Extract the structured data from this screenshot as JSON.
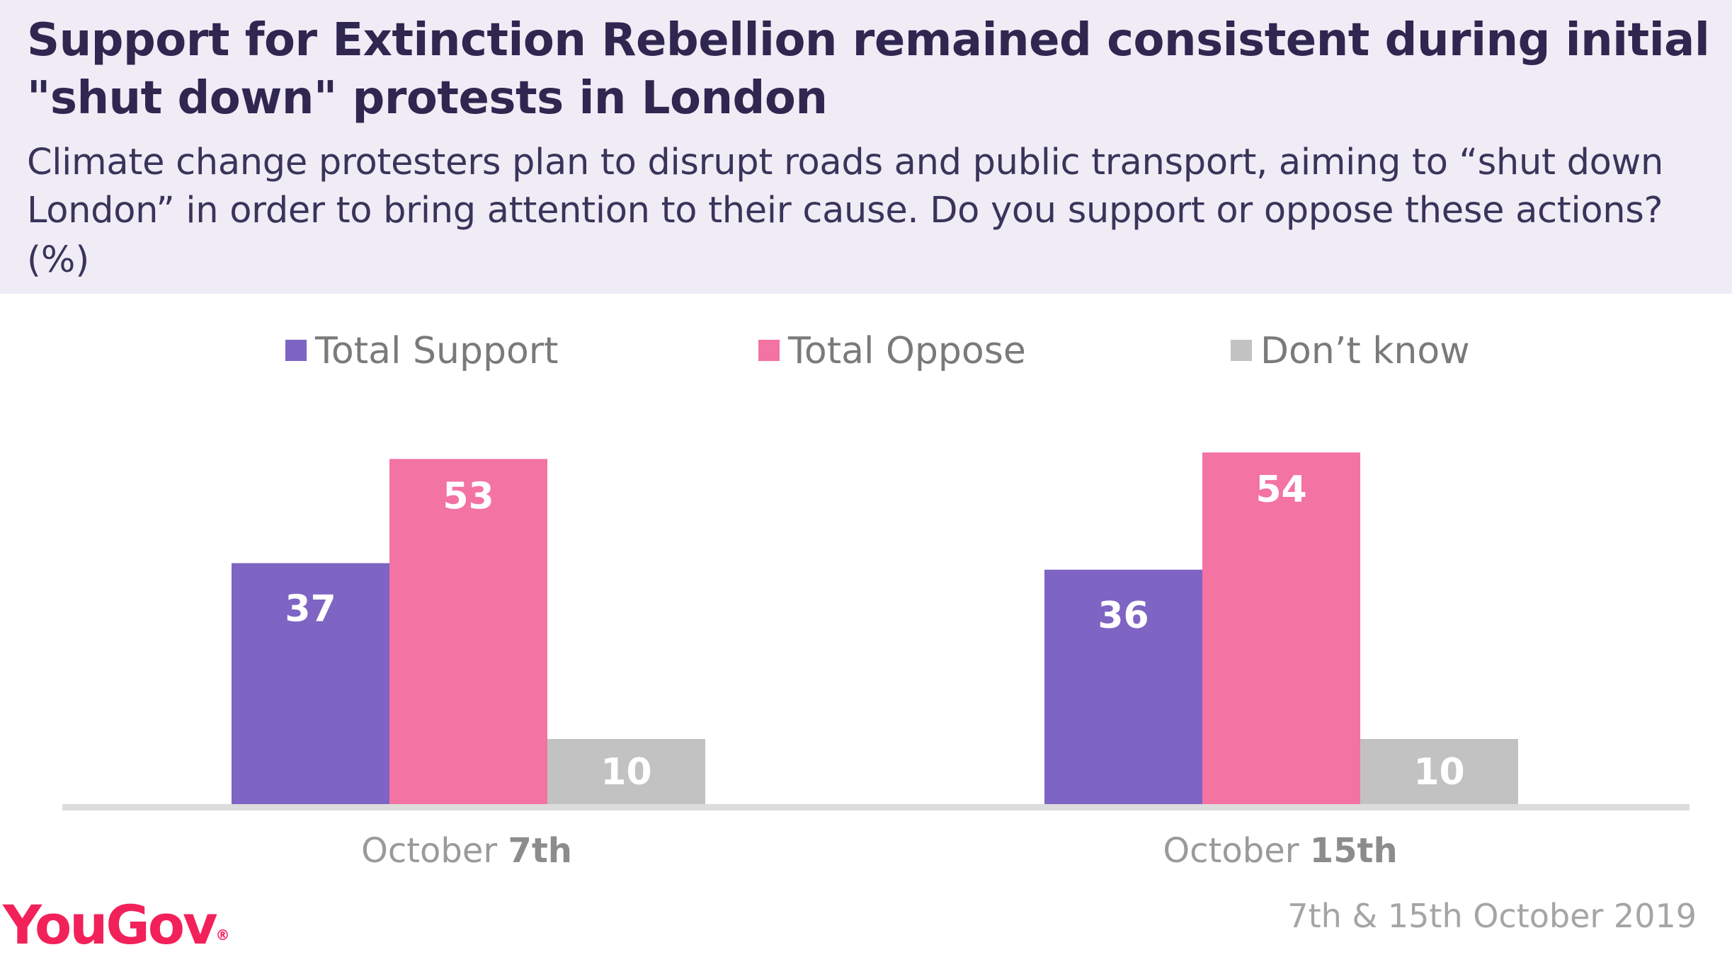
{
  "title": "Support for Extinction Rebellion remained consistent during initial \"shut down\" protests in London",
  "subtitle": "Climate change protesters plan to disrupt roads and public transport, aiming to “shut down London” in order to bring attention to their cause. Do you support or oppose these actions?",
  "unit": "(%)",
  "logo": {
    "text": "YouGov",
    "mark": "®"
  },
  "date_note": "7th & 15th October 2019",
  "colors": {
    "total_support": "#7e64c3",
    "total_oppose": "#f373a3",
    "dont_know": "#c2c2c2",
    "title": "#2f2750",
    "header_bg": "#efecf6",
    "brand": "#f2215a"
  },
  "chart_data": {
    "type": "bar",
    "categories": [
      {
        "prefix": "October",
        "emphasis": "7th"
      },
      {
        "prefix": "October",
        "emphasis": "15th"
      }
    ],
    "series": [
      {
        "name": "Total Support",
        "color": "#7e64c3",
        "values": [
          37,
          36
        ]
      },
      {
        "name": "Total Oppose",
        "color": "#f373a3",
        "values": [
          53,
          54
        ]
      },
      {
        "name": "Don’t know",
        "color": "#c2c2c2",
        "values": [
          10,
          10
        ]
      }
    ],
    "legend_position": "top",
    "grid": false,
    "data_labels": true
  }
}
